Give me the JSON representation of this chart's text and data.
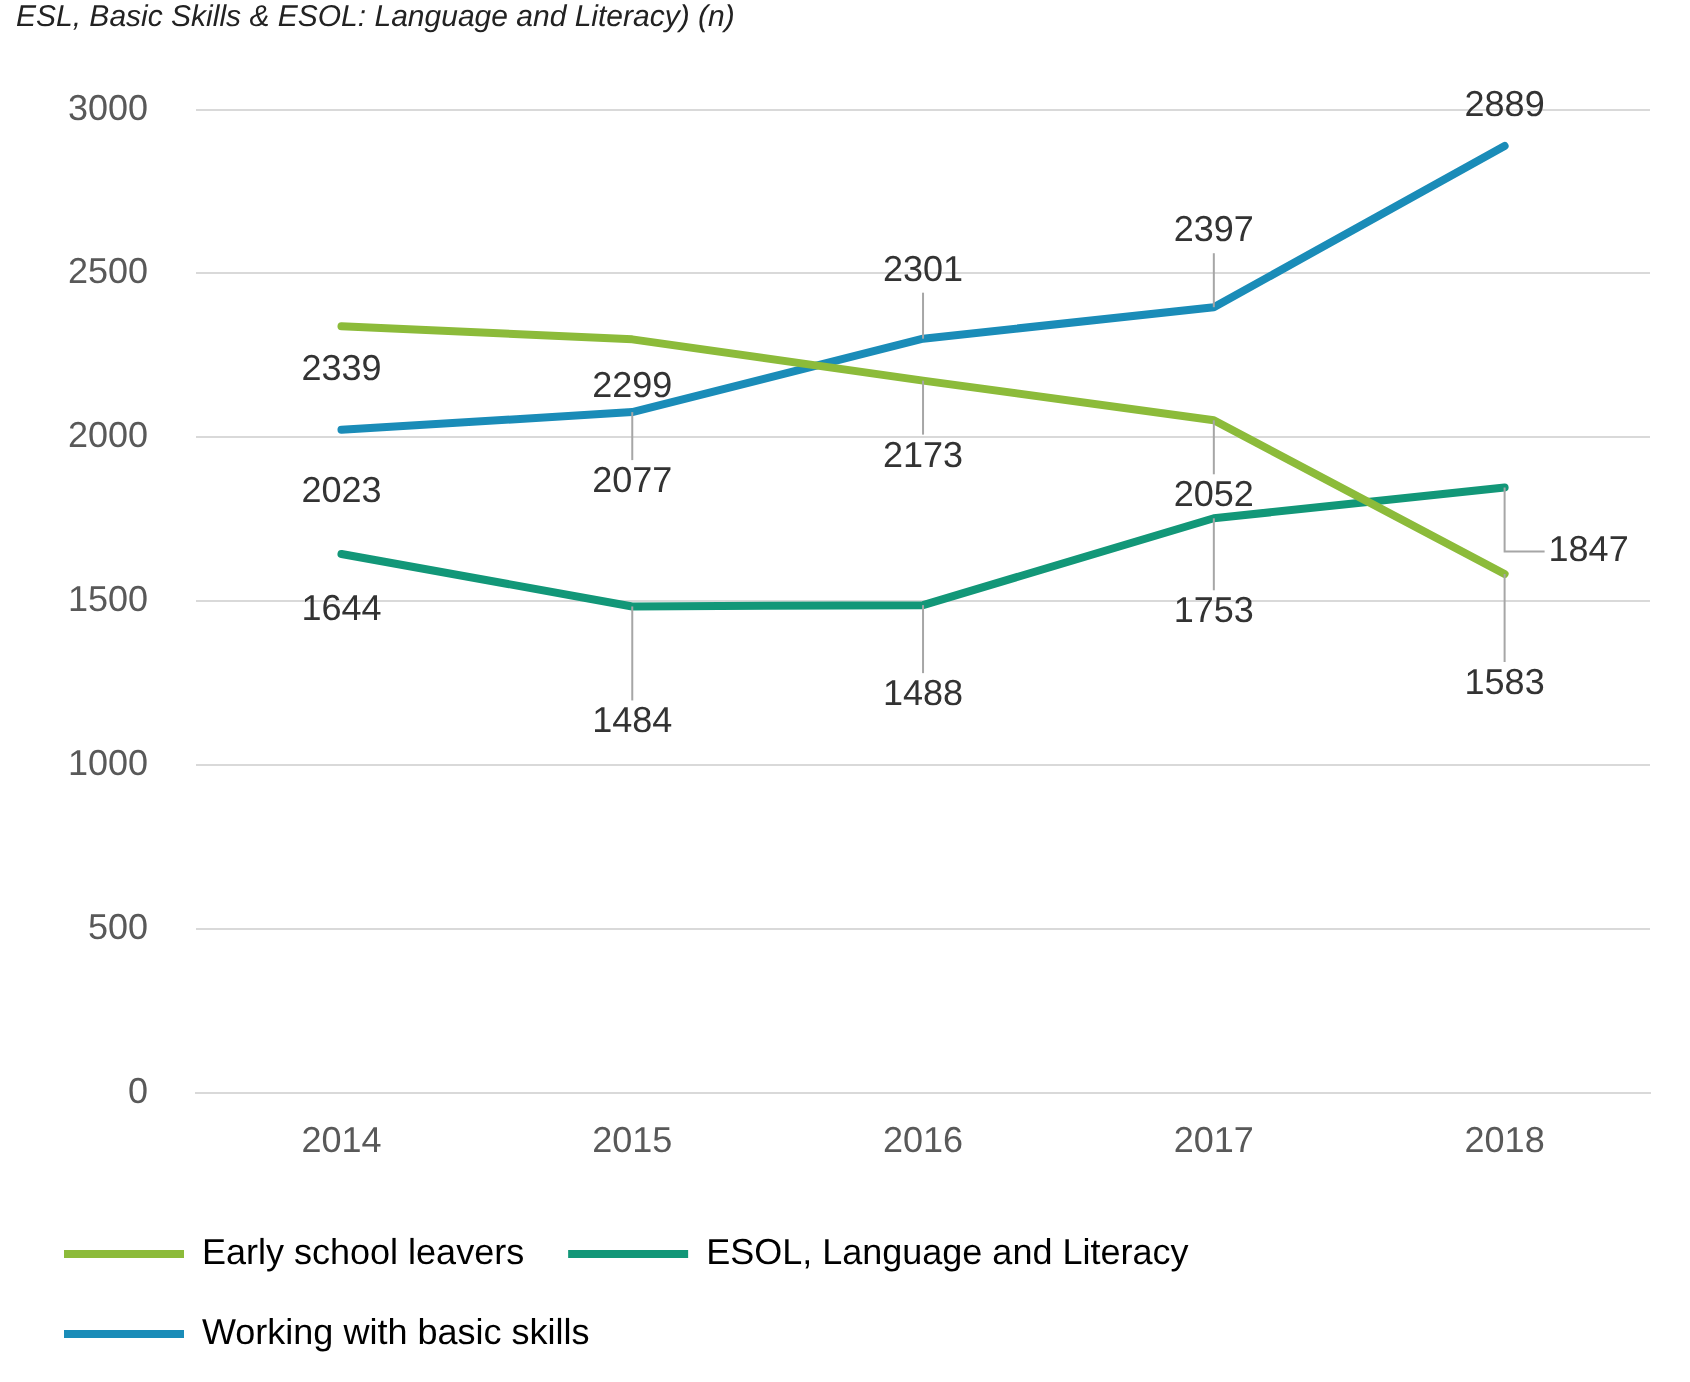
{
  "chart_data": {
    "type": "line",
    "title": "ESL, Basic Skills & ESOL: Language and Literacy) (n)",
    "categories": [
      "2014",
      "2015",
      "2016",
      "2017",
      "2018"
    ],
    "series": [
      {
        "name": "Early school leavers",
        "color": "#8cbb3a",
        "values": [
          2339,
          2299,
          2173,
          2052,
          1583
        ]
      },
      {
        "name": "ESOL, Language and Literacy",
        "color": "#129778",
        "values": [
          1644,
          1484,
          1488,
          1753,
          1847
        ]
      },
      {
        "name": "Working with basic skills",
        "color": "#1a8cb8",
        "values": [
          2023,
          2077,
          2301,
          2397,
          2889
        ]
      }
    ],
    "ylim": [
      0,
      3000
    ],
    "yticks": [
      0,
      500,
      1000,
      1500,
      2000,
      2500,
      3000
    ],
    "grid": "y",
    "legend": "bottom",
    "marker": "none",
    "line_style": "solid",
    "data_labels": true
  }
}
